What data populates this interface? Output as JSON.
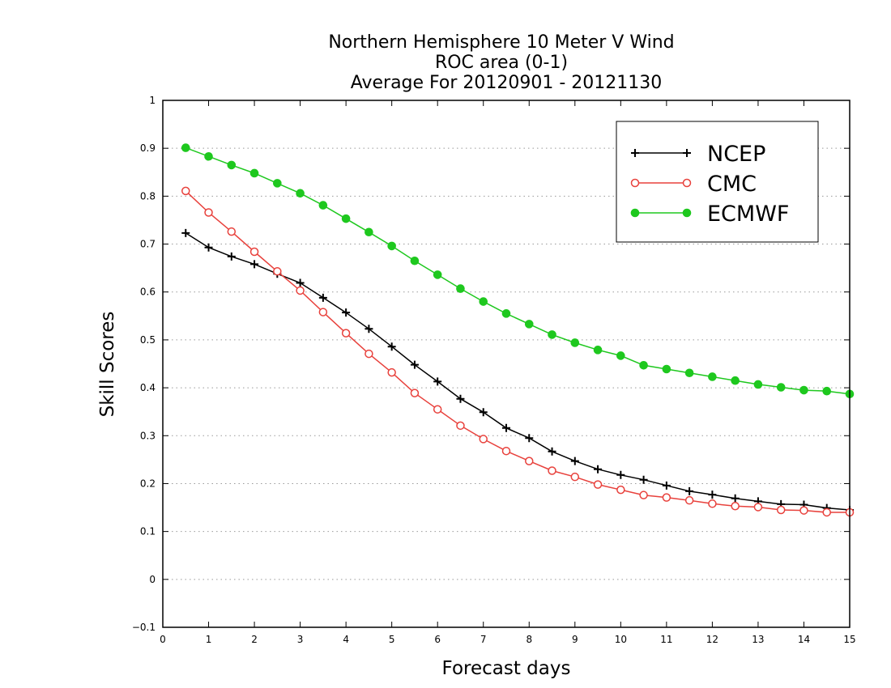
{
  "chart_data": {
    "type": "line",
    "title": [
      "Northern Hemisphere 10 Meter V Wind",
      "ROC area (0-1)",
      "Average For 20120901 - 20121130"
    ],
    "xlabel": "Forecast days",
    "ylabel": "Skill Scores",
    "xlim": [
      0,
      15
    ],
    "ylim": [
      -0.1,
      1
    ],
    "x_ticks": [
      0,
      1,
      2,
      3,
      4,
      5,
      6,
      7,
      8,
      9,
      10,
      11,
      12,
      13,
      14,
      15
    ],
    "x_tick_labels": [
      "0",
      "1",
      "2",
      "3",
      "4",
      "5",
      "6",
      "7",
      "8",
      "9",
      "10",
      "11",
      "12",
      "13",
      "14",
      "15"
    ],
    "y_ticks": [
      -0.1,
      0,
      0.1,
      0.2,
      0.3,
      0.4,
      0.5,
      0.6,
      0.7,
      0.8,
      0.9,
      1
    ],
    "y_tick_labels": [
      "−0.1",
      "0",
      "0.1",
      "0.2",
      "0.3",
      "0.4",
      "0.5",
      "0.6",
      "0.7",
      "0.8",
      "0.9",
      "1"
    ],
    "grid": "horizontal dotted",
    "legend_position": "top-right",
    "x": [
      0.5,
      1,
      1.5,
      2,
      2.5,
      3,
      3.5,
      4,
      4.5,
      5,
      5.5,
      6,
      6.5,
      7,
      7.5,
      8,
      8.5,
      9,
      9.5,
      10,
      10.5,
      11,
      11.5,
      12,
      12.5,
      13,
      13.5,
      14,
      14.5,
      15
    ],
    "series": [
      {
        "name": "NCEP",
        "color": "#000000",
        "marker": "plus",
        "values": [
          0.723,
          0.693,
          0.674,
          0.658,
          0.638,
          0.619,
          0.588,
          0.557,
          0.523,
          0.486,
          0.448,
          0.413,
          0.377,
          0.349,
          0.316,
          0.295,
          0.267,
          0.247,
          0.23,
          0.218,
          0.208,
          0.196,
          0.184,
          0.177,
          0.169,
          0.163,
          0.157,
          0.156,
          0.149,
          0.145
        ]
      },
      {
        "name": "CMC",
        "color": "#e8413c",
        "marker": "open-circle",
        "values": [
          0.811,
          0.766,
          0.726,
          0.684,
          0.643,
          0.603,
          0.558,
          0.514,
          0.471,
          0.432,
          0.389,
          0.355,
          0.321,
          0.293,
          0.268,
          0.247,
          0.227,
          0.214,
          0.198,
          0.187,
          0.176,
          0.171,
          0.165,
          0.158,
          0.153,
          0.151,
          0.145,
          0.144,
          0.14,
          0.14
        ]
      },
      {
        "name": "ECMWF",
        "color": "#1ec81e",
        "marker": "filled-circle",
        "values": [
          0.901,
          0.883,
          0.865,
          0.848,
          0.827,
          0.806,
          0.781,
          0.753,
          0.725,
          0.696,
          0.665,
          0.636,
          0.607,
          0.58,
          0.555,
          0.533,
          0.511,
          0.494,
          0.479,
          0.467,
          0.447,
          0.439,
          0.431,
          0.423,
          0.415,
          0.407,
          0.401,
          0.395,
          0.393,
          0.387
        ]
      }
    ]
  }
}
